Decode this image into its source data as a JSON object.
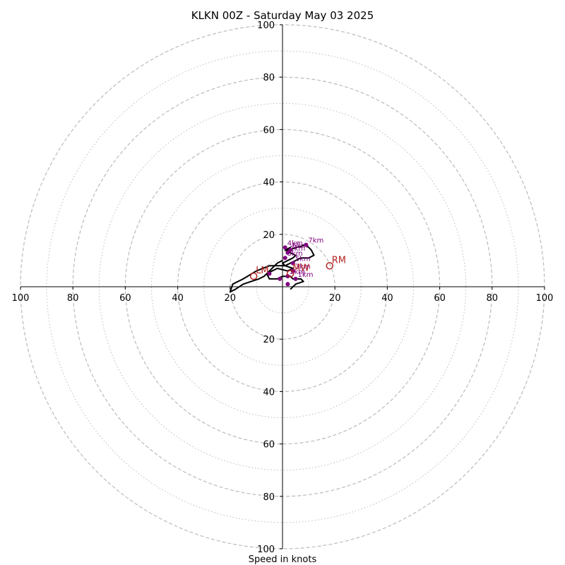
{
  "chart_data": {
    "type": "hodograph",
    "title": "KLKN 00Z - Saturday May 03 2025",
    "xlabel": "Speed in knots",
    "range": [
      -100,
      100
    ],
    "tick_labels": [
      "100",
      "80",
      "60",
      "40",
      "20",
      "20",
      "40",
      "60",
      "80",
      "100"
    ],
    "tick_values": [
      -100,
      -80,
      -60,
      -40,
      -20,
      20,
      40,
      60,
      80,
      100
    ],
    "rings_major": [
      20,
      40,
      60,
      80,
      100
    ],
    "rings_minor": [
      10,
      30,
      50,
      70,
      90
    ],
    "grid": true,
    "colors": {
      "trace": "#000000",
      "height": "#800080",
      "motion": "#b22222",
      "grid": "#bbbbbb"
    },
    "hodograph_trace": {
      "u": [
        3,
        5,
        8,
        7,
        4,
        3,
        0,
        -2,
        -5,
        -6,
        -4,
        -2,
        2,
        4,
        1,
        0,
        2,
        4,
        5,
        1,
        3,
        2,
        9,
        11,
        12,
        10,
        7,
        5,
        3,
        1,
        0,
        -5,
        -10,
        -15,
        -19,
        -20,
        -18,
        -15,
        -12,
        -9,
        -7,
        -6,
        -5,
        -4,
        -3,
        -2,
        0
      ],
      "v": [
        -1,
        1,
        2,
        3,
        3,
        4,
        4,
        3,
        3,
        5,
        6,
        7,
        6,
        7,
        8,
        9,
        10,
        11,
        12,
        14,
        15,
        14,
        16,
        14,
        12,
        11,
        11,
        10,
        9,
        8,
        8,
        8,
        6,
        3,
        1,
        -2,
        -1,
        1,
        2,
        3,
        4,
        5,
        6,
        7,
        8,
        9,
        10
      ]
    },
    "height_markers": [
      {
        "label": "",
        "u": 2,
        "v": 1
      },
      {
        "label": "1km",
        "u": 5,
        "v": 3
      },
      {
        "label": "2km",
        "u": 2,
        "v": 4
      },
      {
        "label": "3km",
        "u": 4,
        "v": 6
      },
      {
        "label": "5km",
        "u": 4,
        "v": 9
      },
      {
        "label": "3km",
        "u": 1,
        "v": 11
      },
      {
        "label": "1km",
        "u": 2,
        "v": 13
      },
      {
        "label": "4km",
        "u": 1,
        "v": 15
      },
      {
        "label": "6km",
        "u": 3,
        "v": 14
      },
      {
        "label": "7km",
        "u": 9,
        "v": 16
      },
      {
        "label": "",
        "u": -1,
        "v": 3
      },
      {
        "label": "",
        "u": -5,
        "v": 5
      }
    ],
    "storm_motion": [
      {
        "label": "RM",
        "u": 18,
        "v": 8
      },
      {
        "label": "LM",
        "u": -11,
        "v": 4
      },
      {
        "label": "MW",
        "u": 3,
        "v": 5
      }
    ]
  }
}
